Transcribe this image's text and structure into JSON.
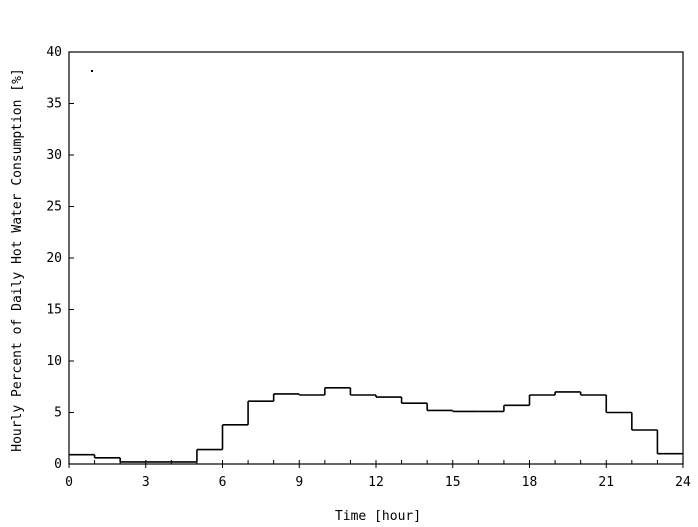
{
  "chart_data": {
    "type": "step",
    "title": "",
    "xlabel": "Time [hour]",
    "ylabel": "Hourly Percent of Daily Hot Water Consumption [%]",
    "xlim": [
      0,
      24
    ],
    "ylim": [
      0,
      40
    ],
    "x_ticks": [
      0,
      3,
      6,
      9,
      12,
      15,
      18,
      21,
      24
    ],
    "y_ticks": [
      0,
      5,
      10,
      15,
      20,
      25,
      30,
      35,
      40
    ],
    "x_minor_tick_step": 1,
    "grid": false,
    "series": [
      {
        "hours": [
          1,
          2,
          3,
          4,
          5,
          6,
          7,
          8,
          9,
          10,
          11,
          12,
          13,
          14,
          15,
          16,
          17,
          18,
          19,
          20,
          21,
          22,
          23,
          24
        ],
        "values": [
          0.9,
          0.6,
          0.2,
          0.2,
          0.2,
          1.4,
          3.8,
          6.1,
          6.8,
          6.7,
          7.4,
          6.7,
          6.5,
          5.9,
          5.2,
          5.1,
          5.1,
          5.7,
          6.7,
          7.0,
          6.7,
          5.0,
          3.3,
          1.0
        ]
      }
    ],
    "stroke_color": "#000000",
    "stroke_width": 1.6
  }
}
